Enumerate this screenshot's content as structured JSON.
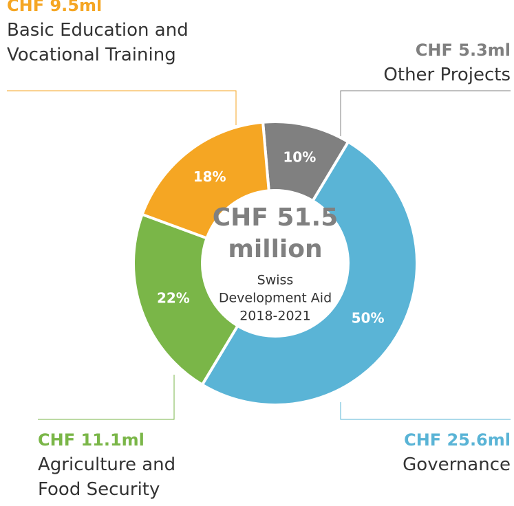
{
  "chart_data": {
    "type": "donut",
    "categories": [
      "Other Projects",
      "Governance",
      "Agriculture and Food Security",
      "Basic Education and Vocational Training"
    ],
    "values": [
      10,
      50,
      22,
      18
    ],
    "value_labels": [
      "10%",
      "50%",
      "22%",
      "18%"
    ],
    "amounts": [
      "CHF 5.3ml",
      "CHF 25.6ml",
      "CHF 11.1ml",
      "CHF 9.5ml"
    ],
    "colors": [
      "#808080",
      "#5ab4d6",
      "#7ab648",
      "#f5a623"
    ],
    "center_title": [
      "CHF 51.5",
      "million"
    ],
    "center_subtitle": [
      "Swiss",
      "Development Aid",
      "2018-2021"
    ]
  }
}
